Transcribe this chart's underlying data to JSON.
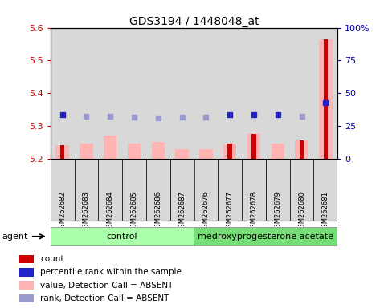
{
  "title": "GDS3194 / 1448048_at",
  "samples": [
    "GSM262682",
    "GSM262683",
    "GSM262684",
    "GSM262685",
    "GSM262686",
    "GSM262687",
    "GSM262676",
    "GSM262677",
    "GSM262678",
    "GSM262679",
    "GSM262680",
    "GSM262681"
  ],
  "absent_value": [
    5.24,
    5.245,
    5.27,
    5.245,
    5.25,
    5.23,
    5.23,
    5.245,
    5.275,
    5.245,
    5.255,
    5.565
  ],
  "count_value": [
    5.24,
    null,
    null,
    null,
    null,
    null,
    null,
    5.245,
    5.275,
    null,
    5.255,
    5.565
  ],
  "rank_dark": [
    5.335,
    null,
    null,
    null,
    null,
    null,
    null,
    5.335,
    5.335,
    5.335,
    null,
    5.37
  ],
  "rank_light": [
    null,
    5.33,
    5.33,
    5.328,
    5.325,
    5.328,
    5.328,
    null,
    null,
    null,
    5.33,
    null
  ],
  "ylim": [
    5.2,
    5.6
  ],
  "yticks": [
    5.2,
    5.3,
    5.4,
    5.5,
    5.6
  ],
  "right_yticks": [
    0,
    25,
    50,
    75,
    100
  ],
  "right_ylabels": [
    "0",
    "25",
    "50",
    "75",
    "100%"
  ],
  "group_labels": [
    "control",
    "medroxyprogesterone acetate"
  ],
  "control_count": 6,
  "treatment_count": 6,
  "group_color_ctrl": "#aaffaa",
  "group_color_med": "#77dd77",
  "agent_label": "agent",
  "bg_color": "#d8d8d8",
  "absent_bar_color": "#ffb3b3",
  "count_bar_color": "#cc0000",
  "rank_dark_color": "#2222cc",
  "rank_light_color": "#9999cc",
  "ylabel_color": "#cc0000",
  "ylabel_right_color": "#0000bb",
  "legend_items": [
    "count",
    "percentile rank within the sample",
    "value, Detection Call = ABSENT",
    "rank, Detection Call = ABSENT"
  ],
  "legend_colors": [
    "#cc0000",
    "#2222cc",
    "#ffb3b3",
    "#9999cc"
  ]
}
